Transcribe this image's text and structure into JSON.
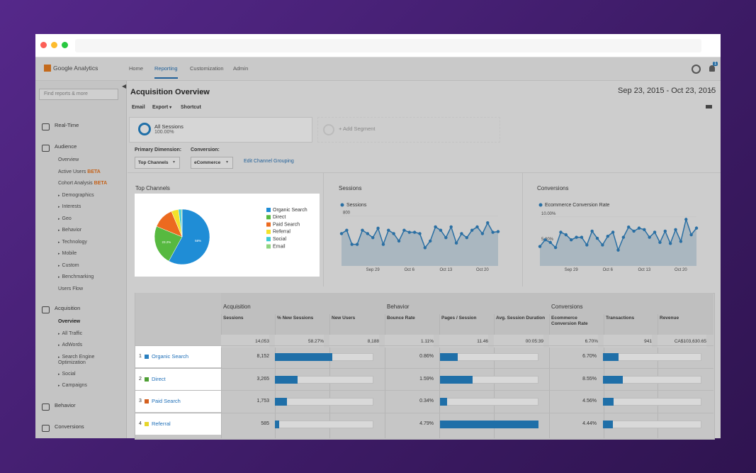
{
  "app": {
    "logo": "Google Analytics",
    "nav": [
      "Home",
      "Reporting",
      "Customization",
      "Admin"
    ],
    "active_nav": 1,
    "notifications": "1"
  },
  "sidebar": {
    "search": "Find reports & more",
    "sections": [
      {
        "title": "Real-Time",
        "items": []
      },
      {
        "title": "Audience",
        "items": [
          {
            "label": "Overview"
          },
          {
            "label": "Active Users",
            "badge": "BETA"
          },
          {
            "label": "Cohort Analysis",
            "badge": "BETA"
          },
          {
            "label": "Demographics",
            "expandable": true
          },
          {
            "label": "Interests",
            "expandable": true
          },
          {
            "label": "Geo",
            "expandable": true
          },
          {
            "label": "Behavior",
            "expandable": true
          },
          {
            "label": "Technology",
            "expandable": true
          },
          {
            "label": "Mobile",
            "expandable": true
          },
          {
            "label": "Custom",
            "expandable": true
          },
          {
            "label": "Benchmarking",
            "expandable": true
          },
          {
            "label": "Users Flow"
          }
        ]
      },
      {
        "title": "Acquisition",
        "items": [
          {
            "label": "Overview",
            "current": true
          },
          {
            "label": "All Traffic",
            "expandable": true
          },
          {
            "label": "AdWords",
            "expandable": true
          },
          {
            "label": "Search Engine Optimization",
            "expandable": true
          },
          {
            "label": "Social",
            "expandable": true
          },
          {
            "label": "Campaigns",
            "expandable": true
          }
        ]
      },
      {
        "title": "Behavior",
        "items": []
      },
      {
        "title": "Conversions",
        "items": []
      }
    ]
  },
  "header": {
    "title": "Acquisition Overview",
    "date_range": "Sep 23, 2015 - Oct 23, 2015",
    "actions": [
      "Email",
      "Export",
      "Shortcut"
    ]
  },
  "segments": [
    {
      "name": "All Sessions",
      "value": "100.00%"
    },
    {
      "name": "+ Add Segment"
    }
  ],
  "controls": {
    "primary_dimension_label": "Primary Dimension:",
    "primary_dimension": "Top Channels",
    "conversion_label": "Conversion:",
    "conversion": "eCommerce",
    "link": "Edit Channel Grouping"
  },
  "top_channels": {
    "type": "pie",
    "title": "Top Channels",
    "categories": [
      "Organic Search",
      "Direct",
      "Paid Search",
      "Referral",
      "Social",
      "Email"
    ],
    "values": [
      58,
      23.2,
      12.5,
      4.2,
      1.6,
      0.5
    ],
    "value_labels": [
      "58%",
      "23.2%",
      null,
      null,
      null,
      null
    ],
    "colors": [
      "#1f8dd6",
      "#57b940",
      "#ec6a1f",
      "#f3e22a",
      "#3ccbd4",
      "#8fd47f"
    ]
  },
  "sessions_chart": {
    "type": "line",
    "title": "Sessions",
    "series_name": "Sessions",
    "color": "#2a6fa3",
    "categories": [
      null,
      null,
      null,
      null,
      null,
      null,
      "Sep 29",
      null,
      null,
      null,
      null,
      null,
      null,
      "Oct 6",
      null,
      null,
      null,
      null,
      null,
      null,
      "Oct 13",
      null,
      null,
      null,
      null,
      null,
      null,
      "Oct 20",
      null,
      null,
      null
    ],
    "values": [
      540,
      590,
      380,
      380,
      590,
      540,
      480,
      620,
      380,
      590,
      540,
      430,
      590,
      560,
      560,
      540,
      330,
      430,
      640,
      590,
      480,
      640,
      400,
      540,
      480,
      590,
      640,
      540,
      700,
      560,
      570
    ],
    "ylim": [
      60,
      850
    ],
    "yticks": [
      400,
      800
    ]
  },
  "conversions_chart": {
    "type": "line",
    "title": "Conversions",
    "series_name": "Ecommerce Conversion Rate",
    "color": "#2a6fa3",
    "categories": [
      null,
      null,
      null,
      null,
      null,
      null,
      "Sep 29",
      null,
      null,
      null,
      null,
      null,
      null,
      "Oct 6",
      null,
      null,
      null,
      null,
      null,
      null,
      "Oct 13",
      null,
      null,
      null,
      null,
      null,
      null,
      "Oct 20",
      null,
      null,
      null
    ],
    "values": [
      4.2,
      5.5,
      5.0,
      4.0,
      7.0,
      6.5,
      5.5,
      6.0,
      6.0,
      4.5,
      7.2,
      5.8,
      4.5,
      6.2,
      7.0,
      3.5,
      6.0,
      8.0,
      7.2,
      7.8,
      7.5,
      6.0,
      7.0,
      5.0,
      7.2,
      4.8,
      7.5,
      5.2,
      9.5,
      6.5,
      7.8
    ],
    "ylim": [
      0.4,
      10.8
    ],
    "yticks": [
      {
        "value": 5,
        "label": "5.00%"
      },
      {
        "value": 10,
        "label": "10.00%"
      }
    ]
  },
  "table": {
    "groups": [
      "Acquisition",
      "Behavior",
      "Conversions"
    ],
    "columns": [
      "Sessions",
      "% New Sessions",
      "New Users",
      "Bounce Rate",
      "Pages / Session",
      "Avg. Session Duration",
      "Ecommerce Conversion Rate",
      "Transactions",
      "Revenue"
    ],
    "totals": [
      "14,053",
      "58.27%",
      "8,188",
      "1.11%",
      "11.46",
      "00:05:39",
      "6.70%",
      "941",
      "CA$103,630.65"
    ],
    "rows": [
      {
        "rank": "1",
        "channel": "Organic Search",
        "color": "#2a7fbf",
        "sessions": "8,152",
        "bounce_rate": "0.86%",
        "conversion_rate": "6.70%"
      },
      {
        "rank": "2",
        "channel": "Direct",
        "color": "#4e9f34",
        "sessions": "3,265",
        "bounce_rate": "1.59%",
        "conversion_rate": "8.55%"
      },
      {
        "rank": "3",
        "channel": "Paid Search",
        "color": "#d4601f",
        "sessions": "1,753",
        "bounce_rate": "0.34%",
        "conversion_rate": "4.56%"
      },
      {
        "rank": "4",
        "channel": "Referral",
        "color": "#e6d52a",
        "sessions": "585",
        "bounce_rate": "4.79%",
        "conversion_rate": "4.44%"
      }
    ]
  }
}
